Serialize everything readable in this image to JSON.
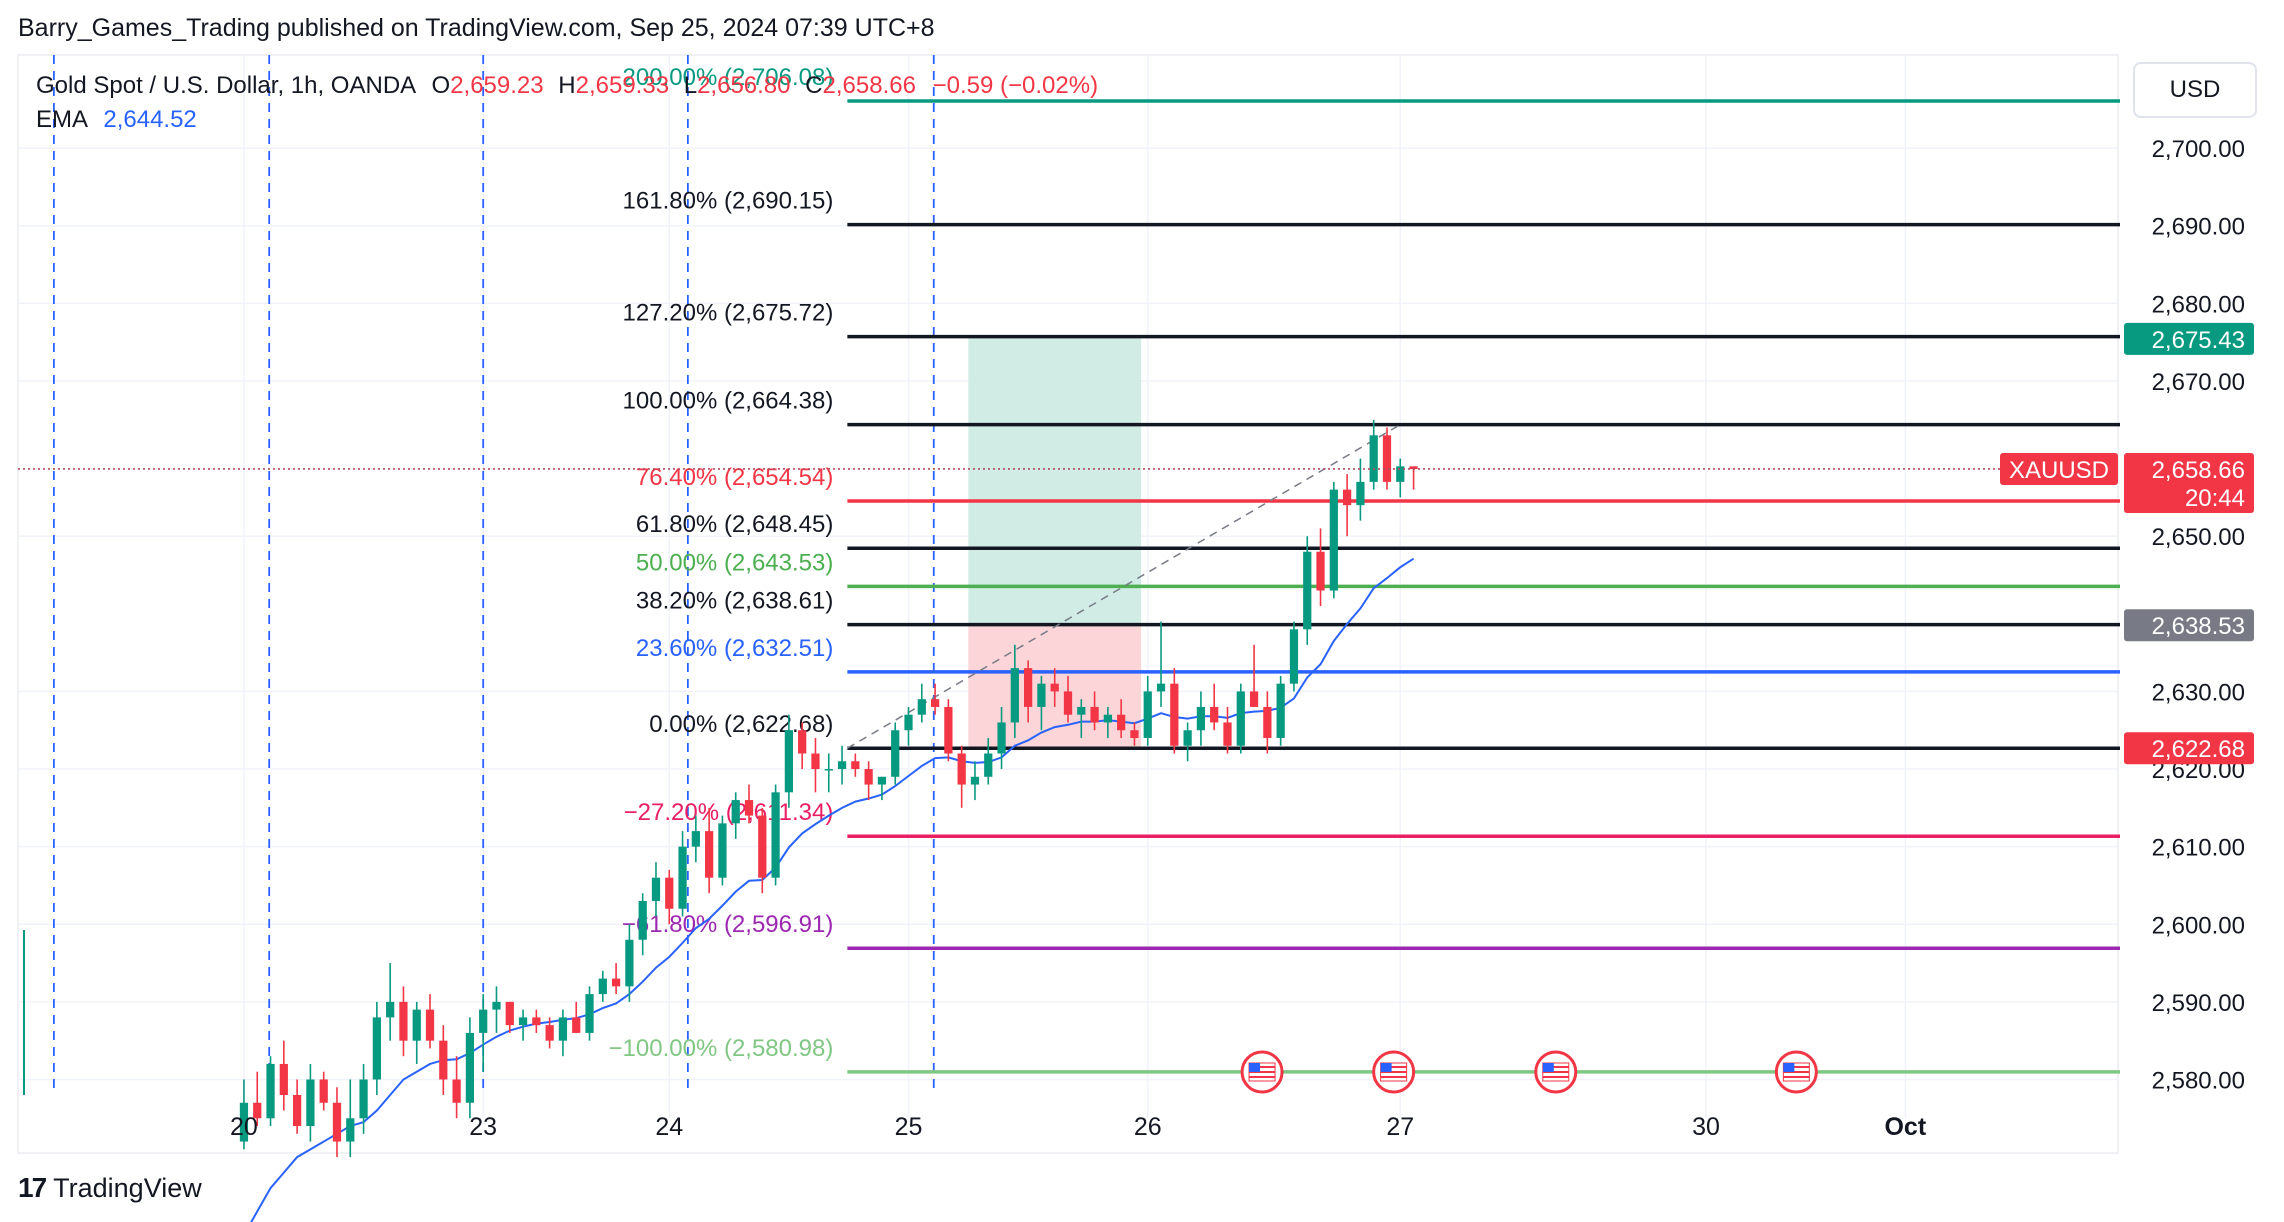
{
  "header": {
    "published_line": "Barry_Games_Trading published on TradingView.com, Sep 25, 2024 07:39 UTC+8"
  },
  "legend": {
    "instrument": "Gold Spot / U.S. Dollar, 1h, OANDA",
    "o_label": "O",
    "o_value": "2,659.23",
    "h_label": "H",
    "h_value": "2,659.33",
    "l_label": "L",
    "l_value": "2,656.80",
    "c_label": "C",
    "c_value": "2,658.66",
    "change": "−0.59 (−0.02%)",
    "ema_label": "EMA",
    "ema_value": "2,644.52"
  },
  "currency_label": "USD",
  "footer": {
    "brand": "TradingView",
    "logo": "17"
  },
  "colors": {
    "up": "#089981",
    "down": "#f23645",
    "ema": "#2962ff",
    "fib_200": "#089981",
    "fib_black": "#131722",
    "fib_764": "#f23645",
    "fib_50": "#4caf50",
    "fib_236": "#2962ff",
    "fib_m272": "#e91e63",
    "fib_m618": "#9c27b0",
    "fib_m100": "#81c784",
    "tp_zone": "#d1ebe5",
    "sl_zone": "#fbd5d8",
    "vline": "#2962ff"
  },
  "chart_data": {
    "type": "candlestick",
    "y_axis": {
      "range": [
        2578,
        2712
      ],
      "ticks": [
        "2,700.00",
        "2,690.00",
        "2,680.00",
        "2,670.00",
        "2,650.00",
        "2,630.00",
        "2,620.00",
        "2,610.00",
        "2,600.00",
        "2,590.00",
        "2,580.00"
      ],
      "tick_values": [
        2700,
        2690,
        2680,
        2670,
        2650,
        2630,
        2620,
        2610,
        2600,
        2590,
        2580
      ]
    },
    "x_axis": {
      "ticks": [
        {
          "label": "20",
          "bar": 0
        },
        {
          "label": "23",
          "bar": 18
        },
        {
          "label": "24",
          "bar": 32
        },
        {
          "label": "25",
          "bar": 50
        },
        {
          "label": "26",
          "bar": 68
        },
        {
          "label": "27",
          "bar": 87
        },
        {
          "label": "30",
          "bar": 110
        },
        {
          "label": "Oct",
          "bar": 125
        }
      ],
      "range_bars": [
        -17,
        141
      ]
    },
    "price_labels": [
      {
        "text": "2,675.43",
        "value": 2675.43,
        "color": "#089981"
      },
      {
        "text": "2,658.66",
        "sub": "20:44",
        "value": 2658.66,
        "color": "#f23645",
        "tag": "XAUUSD"
      },
      {
        "text": "2,638.53",
        "value": 2638.53,
        "color": "#787b86"
      },
      {
        "text": "2,622.68",
        "value": 2622.68,
        "color": "#f23645"
      }
    ],
    "fib_levels": [
      {
        "label": "200.00% (2,706.08)",
        "value": 2706.08,
        "color": "#089981"
      },
      {
        "label": "161.80% (2,690.15)",
        "value": 2690.15,
        "color": "#131722"
      },
      {
        "label": "127.20% (2,675.72)",
        "value": 2675.72,
        "color": "#131722"
      },
      {
        "label": "100.00% (2,664.38)",
        "value": 2664.38,
        "color": "#131722"
      },
      {
        "label": "76.40% (2,654.54)",
        "value": 2654.54,
        "color": "#f23645"
      },
      {
        "label": "61.80% (2,648.45)",
        "value": 2648.45,
        "color": "#131722"
      },
      {
        "label": "50.00% (2,643.53)",
        "value": 2643.53,
        "color": "#4caf50"
      },
      {
        "label": "38.20% (2,638.61)",
        "value": 2638.61,
        "color": "#131722"
      },
      {
        "label": "23.60% (2,632.51)",
        "value": 2632.51,
        "color": "#2962ff"
      },
      {
        "label": "0.00% (2,622.68)",
        "value": 2622.68,
        "color": "#131722"
      },
      {
        "label": "−27.20% (2,611.34)",
        "value": 2611.34,
        "color": "#e91e63"
      },
      {
        "label": "−61.80% (2,596.91)",
        "value": 2596.91,
        "color": "#9c27b0"
      },
      {
        "label": "−100.00% (2,580.98)",
        "value": 2580.98,
        "color": "#81c784"
      }
    ],
    "fib_start_bar": 45.4,
    "position": {
      "bar_start": 54.5,
      "bar_end": 67.5,
      "entry": 2638.61,
      "target": 2675.72,
      "stop": 2622.68
    },
    "session_lines_bars": [
      -14.3,
      1.9,
      18,
      33.4,
      51.9
    ],
    "event_bars": [
      76.6,
      86.5,
      98.7,
      116.8
    ],
    "candles": [
      [
        2572,
        2580,
        2571,
        2577
      ],
      [
        2577,
        2581,
        2574,
        2575
      ],
      [
        2575,
        2583,
        2574,
        2582
      ],
      [
        2582,
        2585,
        2576,
        2578
      ],
      [
        2578,
        2580,
        2573,
        2574
      ],
      [
        2574,
        2582,
        2572,
        2580
      ],
      [
        2580,
        2581,
        2576,
        2577
      ],
      [
        2577,
        2579,
        2570,
        2572
      ],
      [
        2572,
        2580,
        2570,
        2575
      ],
      [
        2575,
        2582,
        2573,
        2580
      ],
      [
        2580,
        2590,
        2578,
        2588
      ],
      [
        2588,
        2595,
        2585,
        2590
      ],
      [
        2590,
        2592,
        2583,
        2585
      ],
      [
        2585,
        2590,
        2582,
        2589
      ],
      [
        2589,
        2591,
        2584,
        2585
      ],
      [
        2585,
        2587,
        2578,
        2580
      ],
      [
        2580,
        2583,
        2575,
        2577
      ],
      [
        2577,
        2588,
        2575,
        2586
      ],
      [
        2586,
        2591,
        2581,
        2589
      ],
      [
        2589,
        2592,
        2586,
        2590
      ],
      [
        2590,
        2590,
        2586,
        2587
      ],
      [
        2587,
        2589,
        2585,
        2588
      ],
      [
        2588,
        2589,
        2586,
        2587
      ],
      [
        2587,
        2588,
        2584,
        2585
      ],
      [
        2585,
        2589,
        2583,
        2588
      ],
      [
        2588,
        2590,
        2586,
        2586
      ],
      [
        2586,
        2592,
        2585,
        2591
      ],
      [
        2591,
        2594,
        2590,
        2593
      ],
      [
        2593,
        2595,
        2591,
        2592
      ],
      [
        2592,
        2600,
        2590,
        2598
      ],
      [
        2598,
        2604,
        2596,
        2603
      ],
      [
        2603,
        2608,
        2601,
        2606
      ],
      [
        2606,
        2607,
        2600,
        2602
      ],
      [
        2602,
        2612,
        2601,
        2610
      ],
      [
        2610,
        2614,
        2608,
        2612
      ],
      [
        2612,
        2615,
        2604,
        2606
      ],
      [
        2606,
        2614,
        2605,
        2613
      ],
      [
        2613,
        2617,
        2611,
        2616
      ],
      [
        2616,
        2618,
        2613,
        2614
      ],
      [
        2614,
        2615,
        2604,
        2606
      ],
      [
        2606,
        2618,
        2605,
        2617
      ],
      [
        2617,
        2627,
        2615,
        2625
      ],
      [
        2625,
        2626,
        2620,
        2622
      ],
      [
        2622,
        2624,
        2617,
        2620
      ],
      [
        2620,
        2622,
        2617,
        2620
      ],
      [
        2620,
        2623,
        2618,
        2621
      ],
      [
        2621,
        2622,
        2619,
        2620
      ],
      [
        2620,
        2621,
        2616,
        2618
      ],
      [
        2618,
        2619,
        2616,
        2619
      ],
      [
        2619,
        2626,
        2618,
        2625
      ],
      [
        2625,
        2628,
        2623,
        2627
      ],
      [
        2627,
        2631,
        2626,
        2629
      ],
      [
        2629,
        2631,
        2627,
        2628
      ],
      [
        2628,
        2629,
        2621,
        2622
      ],
      [
        2622,
        2623,
        2615,
        2618
      ],
      [
        2618,
        2621,
        2616,
        2619
      ],
      [
        2619,
        2624,
        2618,
        2622
      ],
      [
        2622,
        2628,
        2620,
        2626
      ],
      [
        2626,
        2636,
        2624,
        2633
      ],
      [
        2633,
        2634,
        2626,
        2628
      ],
      [
        2628,
        2632,
        2625,
        2631
      ],
      [
        2631,
        2633,
        2628,
        2630
      ],
      [
        2630,
        2632,
        2626,
        2627
      ],
      [
        2627,
        2629,
        2624,
        2628
      ],
      [
        2628,
        2630,
        2625,
        2626
      ],
      [
        2626,
        2628,
        2624,
        2627
      ],
      [
        2627,
        2629,
        2624,
        2625
      ],
      [
        2625,
        2626,
        2623,
        2624
      ],
      [
        2624,
        2632,
        2623,
        2630
      ],
      [
        2630,
        2639,
        2628,
        2631
      ],
      [
        2631,
        2633,
        2622,
        2623
      ],
      [
        2623,
        2626,
        2621,
        2625
      ],
      [
        2625,
        2630,
        2623,
        2628
      ],
      [
        2628,
        2631,
        2625,
        2626
      ],
      [
        2626,
        2628,
        2622,
        2623
      ],
      [
        2623,
        2631,
        2622,
        2630
      ],
      [
        2630,
        2636,
        2628,
        2628
      ],
      [
        2628,
        2630,
        2622,
        2624
      ],
      [
        2624,
        2632,
        2623,
        2631
      ],
      [
        2631,
        2639,
        2630,
        2638
      ],
      [
        2638,
        2650,
        2636,
        2648
      ],
      [
        2648,
        2651,
        2641,
        2643
      ],
      [
        2643,
        2657,
        2642,
        2656
      ],
      [
        2656,
        2658,
        2650,
        2654
      ],
      [
        2654,
        2660,
        2652,
        2657
      ],
      [
        2657,
        2665,
        2656,
        2663
      ],
      [
        2663,
        2664,
        2656,
        2657
      ],
      [
        2657,
        2660,
        2655,
        2659
      ],
      [
        2659,
        2659,
        2656,
        2658.66
      ]
    ],
    "ema": [
      2560,
      2563,
      2566,
      2568,
      2570,
      2571,
      2572,
      2573,
      2574,
      2574.5,
      2576,
      2578,
      2580,
      2581,
      2582,
      2582.5,
      2582.6,
      2583.4,
      2584.5,
      2585.5,
      2586.3,
      2586.8,
      2587.2,
      2587.4,
      2587.7,
      2587.9,
      2588.4,
      2589.2,
      2589.8,
      2591,
      2592.6,
      2594.4,
      2595.8,
      2597.6,
      2599.5,
      2600.7,
      2602.4,
      2604.2,
      2605.6,
      2605.7,
      2607.3,
      2609.9,
      2611.7,
      2612.9,
      2614,
      2615,
      2615.8,
      2616.2,
      2616.7,
      2617.8,
      2619.1,
      2620.4,
      2621.4,
      2621.5,
      2621,
      2620.8,
      2620.9,
      2621.5,
      2623,
      2623.7,
      2624.7,
      2625.4,
      2625.7,
      2626.1,
      2626.1,
      2626.3,
      2626.1,
      2625.9,
      2626.5,
      2627.2,
      2626.7,
      2626.5,
      2626.8,
      2626.8,
      2626.6,
      2627.2,
      2627.4,
      2627.5,
      2627.9,
      2629.1,
      2631.8,
      2633.5,
      2636.5,
      2638.7,
      2640.7,
      2643.3,
      2644.6,
      2646,
      2647.1
    ]
  }
}
